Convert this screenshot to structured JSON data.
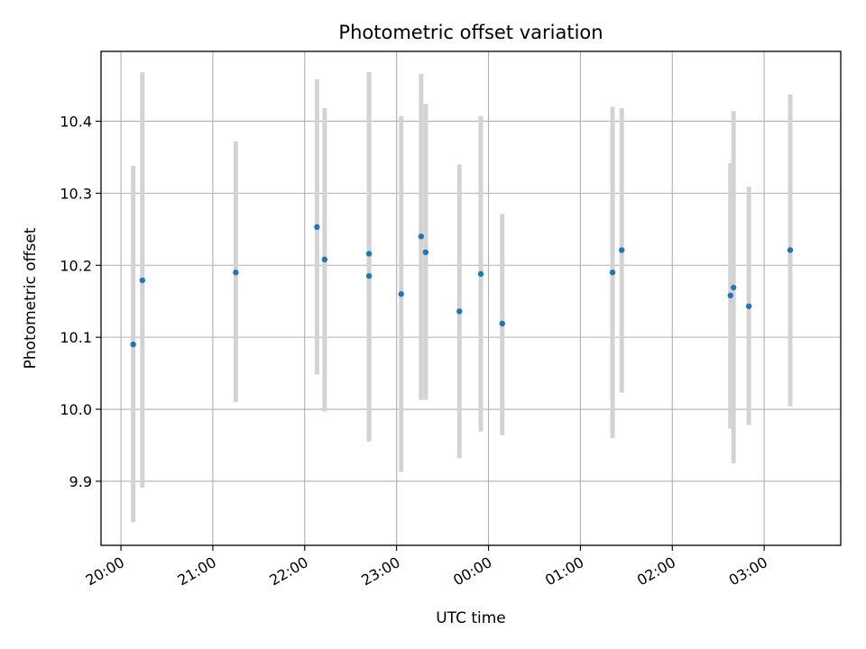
{
  "chart_data": {
    "type": "scatter",
    "title": "Photometric offset variation",
    "xlabel": "UTC time",
    "ylabel": "Photometric offset",
    "x_ticks": [
      "20:00",
      "21:00",
      "22:00",
      "23:00",
      "00:00",
      "01:00",
      "02:00",
      "03:00"
    ],
    "y_ticks": [
      "9.9",
      "10.0",
      "10.1",
      "10.2",
      "10.3",
      "10.4"
    ],
    "xlim": [
      "19:47",
      "03:50"
    ],
    "ylim": [
      9.811,
      10.497
    ],
    "grid": true,
    "colors": {
      "points": "#1f77b4",
      "errorbars": "#d3d3d3",
      "grid": "#b0b0b0"
    },
    "points": [
      {
        "x": "20:08",
        "y": 10.09,
        "err_low": 9.843,
        "err_high": 10.338
      },
      {
        "x": "20:14",
        "y": 10.179,
        "err_low": 9.891,
        "err_high": 10.468
      },
      {
        "x": "21:15",
        "y": 10.19,
        "err_low": 10.01,
        "err_high": 10.372
      },
      {
        "x": "22:08",
        "y": 10.253,
        "err_low": 10.048,
        "err_high": 10.458
      },
      {
        "x": "22:13",
        "y": 10.208,
        "err_low": 9.997,
        "err_high": 10.418
      },
      {
        "x": "22:42",
        "y": 10.216,
        "err_low": 9.955,
        "err_high": 10.468
      },
      {
        "x": "22:42",
        "y": 10.185,
        "err_low": 9.955,
        "err_high": 10.468
      },
      {
        "x": "23:03",
        "y": 10.16,
        "err_low": 9.913,
        "err_high": 10.407
      },
      {
        "x": "23:16",
        "y": 10.24,
        "err_low": 10.013,
        "err_high": 10.466
      },
      {
        "x": "23:19",
        "y": 10.218,
        "err_low": 10.013,
        "err_high": 10.424
      },
      {
        "x": "23:41",
        "y": 10.136,
        "err_low": 9.932,
        "err_high": 10.34
      },
      {
        "x": "23:55",
        "y": 10.188,
        "err_low": 9.969,
        "err_high": 10.407
      },
      {
        "x": "00:09",
        "y": 10.119,
        "err_low": 9.964,
        "err_high": 10.271
      },
      {
        "x": "01:21",
        "y": 10.19,
        "err_low": 9.96,
        "err_high": 10.42
      },
      {
        "x": "01:27",
        "y": 10.221,
        "err_low": 10.023,
        "err_high": 10.418
      },
      {
        "x": "02:38",
        "y": 10.158,
        "err_low": 9.973,
        "err_high": 10.342
      },
      {
        "x": "02:40",
        "y": 10.169,
        "err_low": 9.925,
        "err_high": 10.414
      },
      {
        "x": "02:50",
        "y": 10.143,
        "err_low": 9.978,
        "err_high": 10.309
      },
      {
        "x": "03:17",
        "y": 10.221,
        "err_low": 10.004,
        "err_high": 10.437
      }
    ]
  }
}
